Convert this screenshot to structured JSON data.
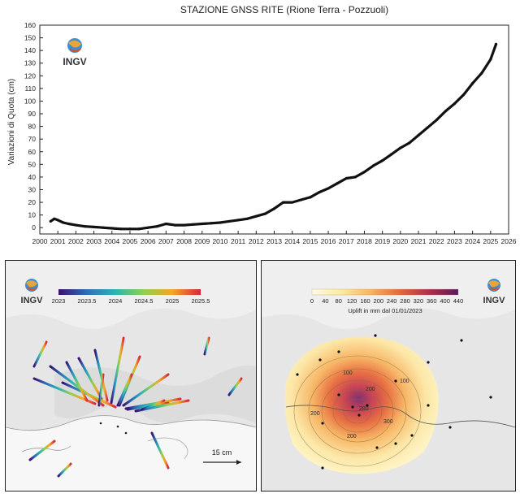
{
  "chart_data": [
    {
      "type": "line",
      "title": "STAZIONE GNSS RITE (Rione Terra - Pozzuoli)",
      "xlabel": "",
      "ylabel": "Variazioni di Quota (cm)",
      "xlim": [
        2000,
        2026
      ],
      "ylim": [
        -5,
        160
      ],
      "xticks": [
        "2000",
        "2001",
        "2002",
        "2003",
        "2004",
        "2005",
        "2006",
        "2007",
        "2008",
        "2009",
        "2010",
        "2011",
        "2012",
        "2013",
        "2014",
        "2015",
        "2016",
        "2017",
        "2018",
        "2019",
        "2020",
        "2021",
        "2022",
        "2023",
        "2024",
        "2025",
        "2026"
      ],
      "yticks": [
        "0",
        "10",
        "20",
        "30",
        "40",
        "50",
        "60",
        "70",
        "80",
        "90",
        "100",
        "110",
        "120",
        "130",
        "140",
        "150",
        "160"
      ],
      "grid": false,
      "x": [
        2000.6,
        2000.8,
        2001.0,
        2001.3,
        2001.6,
        2002.0,
        2002.5,
        2003.0,
        2003.5,
        2004.0,
        2004.5,
        2005.0,
        2005.5,
        2006.0,
        2006.5,
        2007.0,
        2007.5,
        2008.0,
        2008.5,
        2009.0,
        2009.5,
        2010.0,
        2010.5,
        2011.0,
        2011.5,
        2012.0,
        2012.5,
        2013.0,
        2013.5,
        2014.0,
        2014.5,
        2015.0,
        2015.5,
        2016.0,
        2016.5,
        2017.0,
        2017.5,
        2018.0,
        2018.5,
        2019.0,
        2019.5,
        2020.0,
        2020.5,
        2021.0,
        2021.5,
        2022.0,
        2022.5,
        2023.0,
        2023.5,
        2024.0,
        2024.5,
        2025.0,
        2025.3
      ],
      "y": [
        5,
        7,
        6,
        4,
        3,
        2,
        1,
        0.5,
        0,
        -0.5,
        -1,
        -1,
        -1,
        0,
        1,
        3,
        2,
        2,
        2.5,
        3,
        3.5,
        4,
        5,
        6,
        7,
        9,
        11,
        15,
        20,
        20,
        22,
        24,
        28,
        31,
        35,
        39,
        40,
        44,
        49,
        53,
        58,
        63,
        67,
        73,
        79,
        85,
        92,
        98,
        105,
        114,
        122,
        133,
        145
      ]
    },
    {
      "type": "other",
      "colorbar_ticks": [
        "2023",
        "2023.5",
        "2024",
        "2024.5",
        "2025",
        "2025.5"
      ],
      "scale_label": "15 cm"
    },
    {
      "type": "heatmap",
      "colorbar_ticks": [
        "0",
        "40",
        "80",
        "120",
        "160",
        "200",
        "240",
        "280",
        "320",
        "360",
        "400",
        "440"
      ],
      "colorbar_label": "Uplift in mm dal 01/01/2023",
      "contour_labels": [
        "100",
        "200",
        "280",
        "300",
        "200",
        "200",
        "100"
      ]
    }
  ],
  "logos": {
    "agency": "INGV"
  },
  "colors": {
    "series": "#111111",
    "map_bg": "#f1f1f1",
    "uplift_low": "#fff7c8",
    "uplift_high": "#6b1e62"
  }
}
